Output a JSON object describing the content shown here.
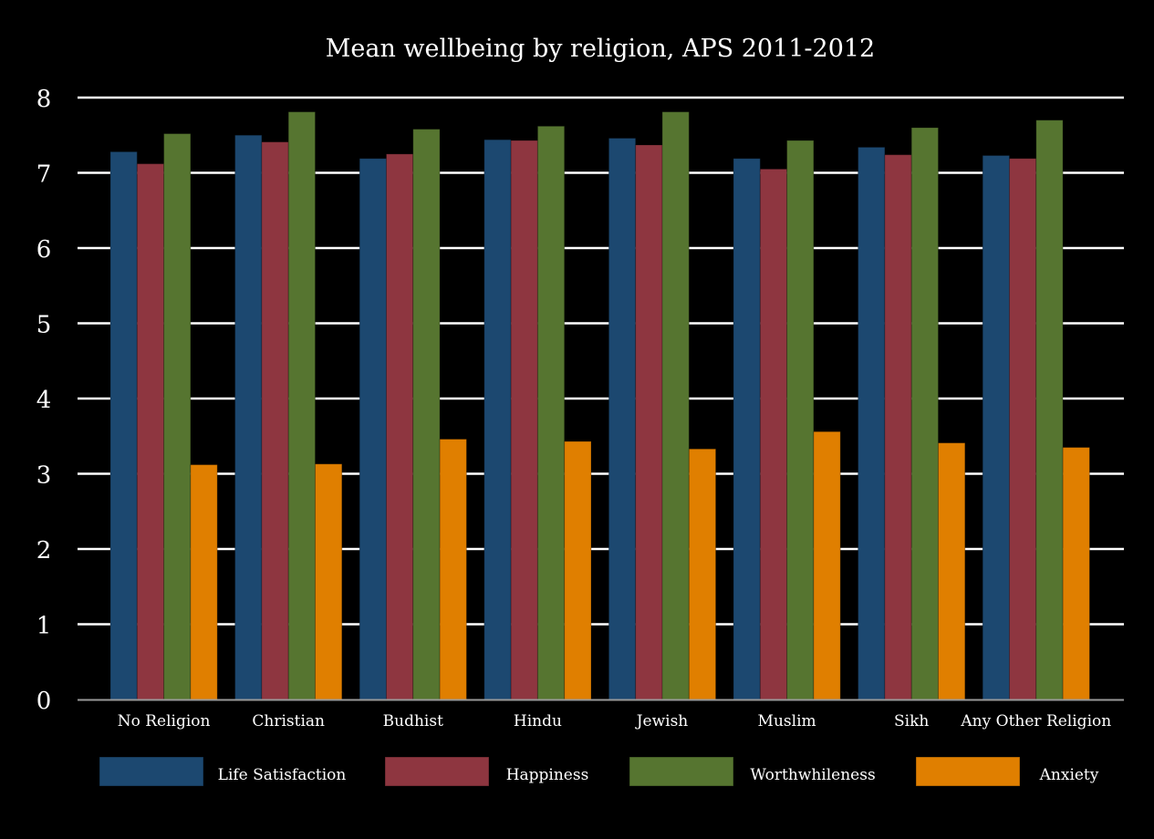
{
  "chart_data": {
    "type": "bar",
    "title": "Mean wellbeing by religion, APS 2011-2012",
    "xlabel": "",
    "ylabel": "",
    "ylim": [
      0,
      8
    ],
    "yticks": [
      "0",
      "1",
      "2",
      "3",
      "4",
      "5",
      "6",
      "7",
      "8"
    ],
    "grid": true,
    "legend_position": "bottom",
    "categories": [
      "No Religion",
      "Christian",
      "Budhist",
      "Hindu",
      "Jewish",
      "Muslim",
      "Sikh",
      "Any Other Religion"
    ],
    "series": [
      {
        "name": "Life Satisfaction",
        "color": "#1c4870",
        "values": [
          7.28,
          7.5,
          7.19,
          7.44,
          7.46,
          7.19,
          7.34,
          7.23
        ]
      },
      {
        "name": "Happiness",
        "color": "#8e3640",
        "values": [
          7.12,
          7.41,
          7.25,
          7.43,
          7.37,
          7.05,
          7.24,
          7.19
        ]
      },
      {
        "name": "Worthwhileness",
        "color": "#567530",
        "values": [
          7.52,
          7.81,
          7.58,
          7.62,
          7.81,
          7.43,
          7.6,
          7.7
        ]
      },
      {
        "name": "Anxiety",
        "color": "#e07f00",
        "values": [
          3.12,
          3.13,
          3.46,
          3.43,
          3.33,
          3.56,
          3.41,
          3.35
        ]
      }
    ]
  }
}
